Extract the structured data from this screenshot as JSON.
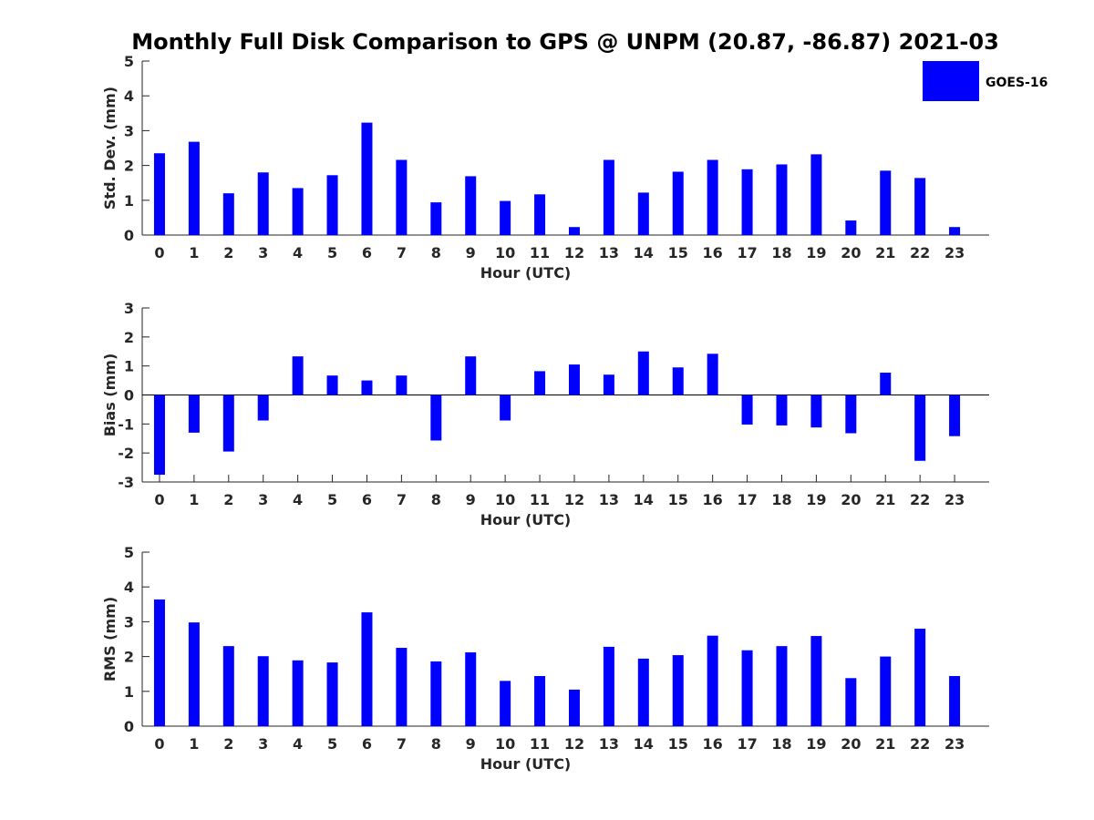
{
  "title": "Monthly Full Disk Comparison to GPS @ UNPM (20.87, -86.87) 2021-03",
  "legend": {
    "label": "GOES-16",
    "position": "top-right"
  },
  "colors": {
    "bar": "#0000ff",
    "axis": "#262626"
  },
  "chart_data": [
    {
      "type": "bar",
      "xlabel": "Hour (UTC)",
      "ylabel": "Std. Dev. (mm)",
      "ylim": [
        0,
        5
      ],
      "yticks": [
        0,
        1,
        2,
        3,
        4,
        5
      ],
      "categories": [
        0,
        1,
        2,
        3,
        4,
        5,
        6,
        7,
        8,
        9,
        10,
        11,
        12,
        13,
        14,
        15,
        16,
        17,
        18,
        19,
        20,
        21,
        22,
        23
      ],
      "series": [
        {
          "name": "GOES-16",
          "values": [
            2.35,
            2.68,
            1.2,
            1.8,
            1.35,
            1.72,
            3.23,
            2.16,
            0.94,
            1.69,
            0.98,
            1.17,
            0.23,
            2.16,
            1.22,
            1.82,
            2.16,
            1.89,
            2.03,
            2.32,
            0.42,
            1.85,
            1.64,
            0.23
          ]
        }
      ]
    },
    {
      "type": "bar",
      "xlabel": "Hour (UTC)",
      "ylabel": "Bias (mm)",
      "ylim": [
        -3,
        3
      ],
      "yticks": [
        -3,
        -2,
        -1,
        0,
        1,
        2,
        3
      ],
      "zero_line": true,
      "categories": [
        0,
        1,
        2,
        3,
        4,
        5,
        6,
        7,
        8,
        9,
        10,
        11,
        12,
        13,
        14,
        15,
        16,
        17,
        18,
        19,
        20,
        21,
        22,
        23
      ],
      "series": [
        {
          "name": "GOES-16",
          "values": [
            -2.75,
            -1.3,
            -1.95,
            -0.88,
            1.33,
            0.67,
            0.5,
            0.67,
            -1.57,
            1.33,
            -0.88,
            0.82,
            1.05,
            0.7,
            1.5,
            0.95,
            1.42,
            -1.02,
            -1.05,
            -1.12,
            -1.32,
            0.77,
            -2.27,
            -1.42
          ]
        }
      ]
    },
    {
      "type": "bar",
      "xlabel": "Hour (UTC)",
      "ylabel": "RMS (mm)",
      "ylim": [
        0,
        5
      ],
      "yticks": [
        0,
        1,
        2,
        3,
        4,
        5
      ],
      "categories": [
        0,
        1,
        2,
        3,
        4,
        5,
        6,
        7,
        8,
        9,
        10,
        11,
        12,
        13,
        14,
        15,
        16,
        17,
        18,
        19,
        20,
        21,
        22,
        23
      ],
      "series": [
        {
          "name": "GOES-16",
          "values": [
            3.64,
            2.98,
            2.3,
            2.01,
            1.89,
            1.83,
            3.27,
            2.25,
            1.86,
            2.12,
            1.3,
            1.44,
            1.05,
            2.28,
            1.94,
            2.04,
            2.6,
            2.18,
            2.3,
            2.59,
            1.38,
            2.0,
            2.8,
            1.44
          ]
        }
      ]
    }
  ]
}
